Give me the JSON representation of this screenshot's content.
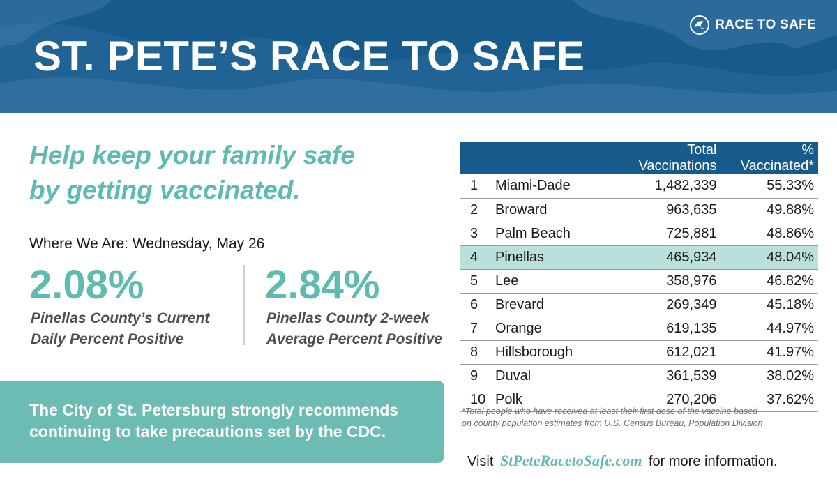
{
  "header": {
    "title": "ST. PETE’S RACE TO SAFE",
    "logo_text": "RACE TO SAFE",
    "logo_icon": "pelican-icon"
  },
  "colors": {
    "header_blue": "#175a8c",
    "teal": "#5fbab0",
    "callout_teal": "#6dbcb3",
    "highlight_row": "#b9e0db"
  },
  "left": {
    "headline_line1": "Help keep your family safe",
    "headline_line2": "by getting vaccinated.",
    "where_we_are": "Where We Are: Wednesday, May 26",
    "stat1": {
      "value": "2.08%",
      "caption_line1": "Pinellas County’s Current",
      "caption_line2": "Daily Percent Positive"
    },
    "stat2": {
      "value": "2.84%",
      "caption_line1": "Pinellas County 2-week",
      "caption_line2": "Average Percent Positive"
    },
    "callout_line1": "The City of St. Petersburg strongly recommends",
    "callout_line2": "continuing to take precautions set by the CDC."
  },
  "table": {
    "headers": [
      "",
      "",
      "Total Vaccinations",
      "% Vaccinated*"
    ],
    "rows": [
      {
        "rank": "1",
        "county": "Miami-Dade",
        "total": "1,482,339",
        "pct": "55.33%"
      },
      {
        "rank": "2",
        "county": "Broward",
        "total": "963,635",
        "pct": "49.88%"
      },
      {
        "rank": "3",
        "county": "Palm Beach",
        "total": "725,881",
        "pct": "48.86%"
      },
      {
        "rank": "4",
        "county": "Pinellas",
        "total": "465,934",
        "pct": "48.04%"
      },
      {
        "rank": "5",
        "county": "Lee",
        "total": "358,976",
        "pct": "46.82%"
      },
      {
        "rank": "6",
        "county": "Brevard",
        "total": "269,349",
        "pct": "45.18%"
      },
      {
        "rank": "7",
        "county": "Orange",
        "total": "619,135",
        "pct": "44.97%"
      },
      {
        "rank": "8",
        "county": "Hillsborough",
        "total": "612,021",
        "pct": "41.97%"
      },
      {
        "rank": "9",
        "county": "Duval",
        "total": "361,539",
        "pct": "38.02%"
      },
      {
        "rank": "10",
        "county": "Polk",
        "total": "270,206",
        "pct": "37.62%"
      }
    ],
    "highlight_county": "Pinellas",
    "footnote_line1": "*Total people who have received at least their first dose of the vaccine based",
    "footnote_line2": "on county population estimates from U.S. Census Bureau, Population Division"
  },
  "footer": {
    "visit_prefix": "Visit",
    "site": "StPeteRacetoSafe.com",
    "visit_suffix": "for more information."
  }
}
